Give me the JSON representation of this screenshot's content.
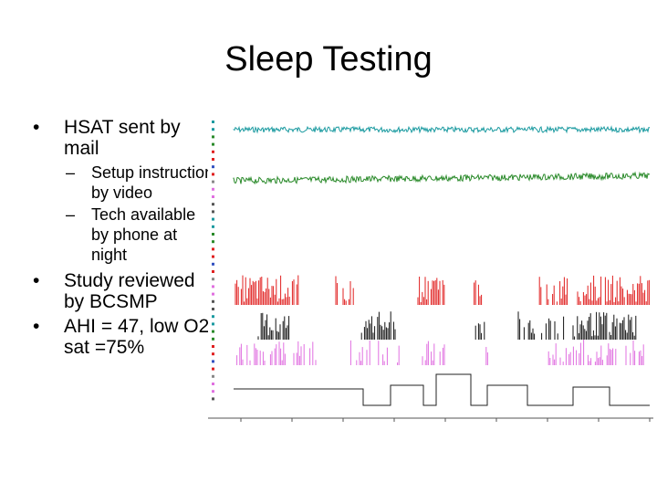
{
  "slide": {
    "title": "Sleep Testing",
    "bullets": [
      {
        "text": "HSAT sent by mail",
        "sub": [
          "Setup instruction by video",
          "Tech available by phone at night"
        ]
      },
      {
        "text": "Study reviewed by BCSMP",
        "sub": []
      },
      {
        "text": "AHI = 47, low O2 sat =75%",
        "sub": []
      }
    ]
  },
  "colors": {
    "spo2_trace": "#1a9aa0",
    "pulse_trace": "#2a8a2a",
    "desat_events": "#e02020",
    "apnea_events": "#111111",
    "hypopnea_events": "#e070e0",
    "position_trace": "#222222"
  }
}
